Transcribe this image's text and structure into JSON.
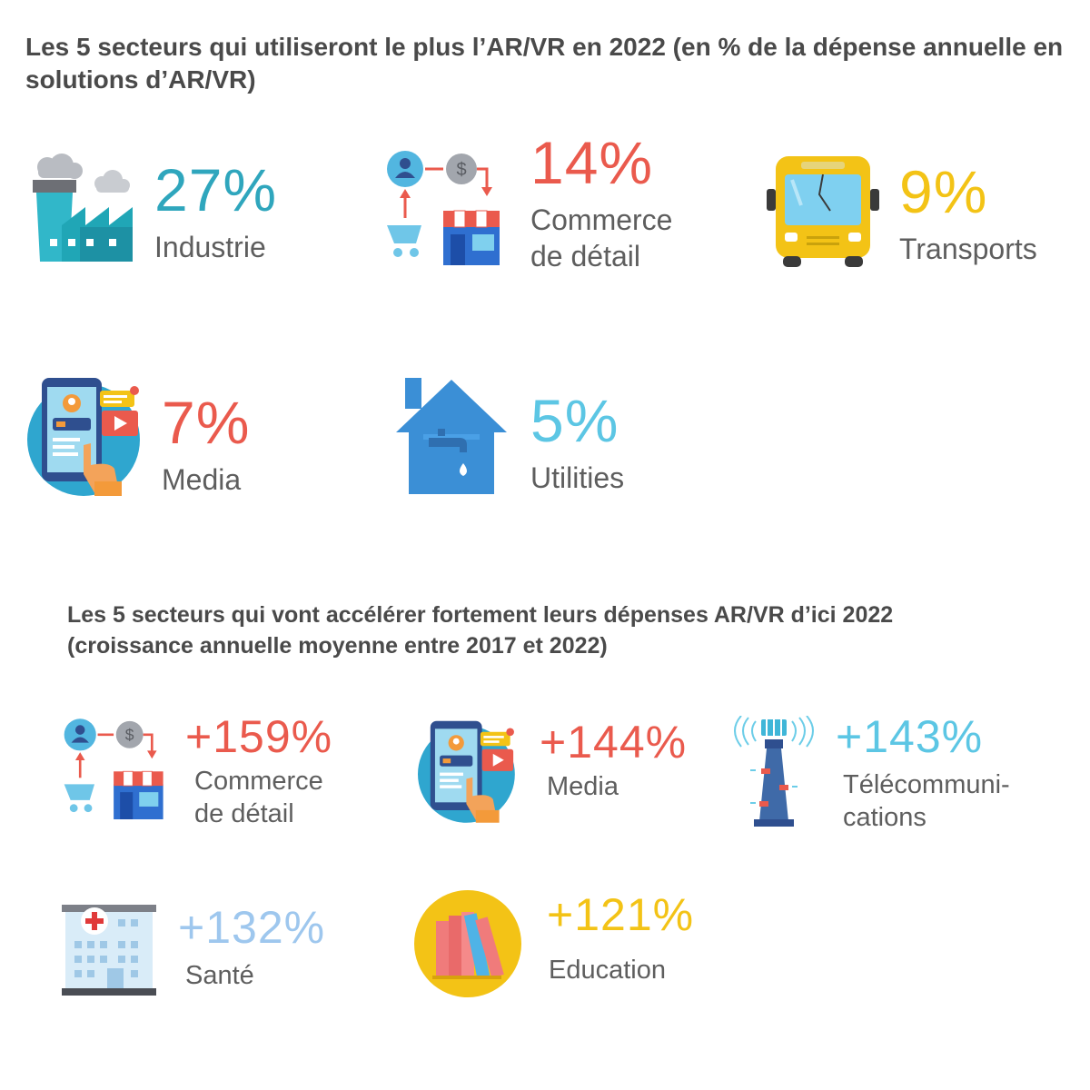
{
  "colors": {
    "red": "#ea5a4d",
    "teal": "#2fa6bd",
    "yellow": "#f3c316",
    "sky": "#5cc6e4",
    "light_blue": "#9ec7ee",
    "title_gray": "#4a4a4a",
    "label_gray": "#5e5e5e"
  },
  "chart_data": [
    {
      "type": "table",
      "title": "Les 5 secteurs qui utiliseront le plus l’AR/VR en 2022 (en % de la dépense annuelle en solutions d’AR/VR)",
      "categories": [
        "Industrie",
        "Commerce de détail",
        "Transports",
        "Media",
        "Utilities"
      ],
      "values": [
        27,
        14,
        9,
        7,
        5
      ],
      "unit": "%",
      "display": [
        "27%",
        "14%",
        "9%",
        "7%",
        "5%"
      ],
      "labels_lines": [
        [
          "Industrie"
        ],
        [
          "Commerce",
          "de détail"
        ],
        [
          "Transports"
        ],
        [
          "Media"
        ],
        [
          "Utilities"
        ]
      ],
      "icons": [
        "factory-icon",
        "retail-shop-icon",
        "bus-icon",
        "mobile-media-icon",
        "house-water-tap-icon"
      ]
    },
    {
      "type": "table",
      "title": "Les 5 secteurs qui vont accélérer fortement leurs dépenses AR/VR d’ici 2022 (croissance annuelle moyenne entre 2017 et 2022)",
      "categories": [
        "Commerce de détail",
        "Media",
        "Télécommunications",
        "Santé",
        "Education"
      ],
      "values": [
        159,
        144,
        143,
        132,
        121
      ],
      "unit": "%",
      "display": [
        "+159%",
        "+144%",
        "+143%",
        "+132%",
        "+121%"
      ],
      "labels_lines": [
        [
          "Commerce",
          "de détail"
        ],
        [
          "Media"
        ],
        [
          "Télécommuni-",
          "cations"
        ],
        [
          "Santé"
        ],
        [
          "Education"
        ]
      ],
      "icons": [
        "retail-shop-icon",
        "mobile-media-icon",
        "telecom-tower-icon",
        "hospital-icon",
        "books-icon"
      ]
    }
  ]
}
